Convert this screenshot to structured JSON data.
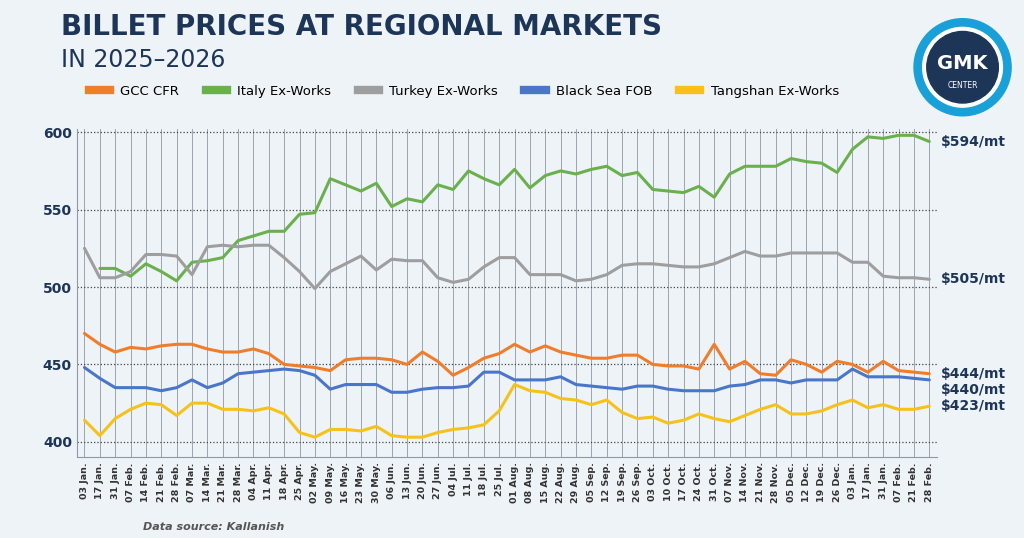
{
  "chart_data": {
    "type": "line",
    "title": "BILLET PRICES AT REGIONAL MARKETS",
    "subtitle": "IN 2025–2026",
    "source": "Data source: Kallanish",
    "logo_text": [
      "GMK",
      "CENTER"
    ],
    "categories": [
      "03 Jan.",
      "17 Jan.",
      "31 Jan.",
      "07 Feb.",
      "14 Feb.",
      "21 Feb.",
      "28 Feb.",
      "07 Mar.",
      "14 Mar.",
      "21 Mar.",
      "28 Mar.",
      "04 Apr.",
      "11 Apr.",
      "18 Apr.",
      "25 Apr.",
      "02 May.",
      "09 May.",
      "16 May.",
      "23 May.",
      "30 May.",
      "06 Jun.",
      "13 Jun.",
      "20 Jun.",
      "27 Jun.",
      "04 Jul.",
      "11 Jul.",
      "18 Jul.",
      "25 Jul.",
      "01 Aug.",
      "08 Aug.",
      "15 Aug.",
      "22 Aug.",
      "29 Aug.",
      "05 Sep.",
      "12 Sep.",
      "19 Sep.",
      "26 Sep.",
      "03 Oct.",
      "10 Oct.",
      "17 Oct.",
      "24 Oct.",
      "31 Oct.",
      "07 Nov.",
      "14 Nov.",
      "21 Nov.",
      "28 Nov.",
      "05 Dec.",
      "12 Dec.",
      "19 Dec.",
      "26 Dec.",
      "03 Jan.",
      "17 Jan.",
      "31 Jan.",
      "07 Feb.",
      "21 Feb.",
      "28 Feb."
    ],
    "series": [
      {
        "name": "GCC CFR",
        "color": "#f07d2a",
        "end_label": "$444/mt",
        "values": [
          470,
          463,
          458,
          461,
          460,
          462,
          463,
          463,
          460,
          458,
          458,
          460,
          457,
          450,
          449,
          448,
          446,
          453,
          454,
          454,
          453,
          450,
          458,
          452,
          443,
          448,
          454,
          457,
          463,
          458,
          462,
          458,
          456,
          454,
          454,
          456,
          456,
          450,
          449,
          449,
          447,
          463,
          447,
          452,
          444,
          443,
          453,
          450,
          445,
          452,
          450,
          445,
          452,
          446,
          445,
          444
        ]
      },
      {
        "name": "Italy Ex-Works",
        "color": "#6ab04c",
        "end_label": "$594/mt",
        "values": [
          null,
          512,
          512,
          507,
          515,
          510,
          504,
          516,
          517,
          519,
          530,
          533,
          536,
          536,
          547,
          548,
          570,
          566,
          562,
          567,
          552,
          557,
          555,
          566,
          563,
          575,
          570,
          566,
          576,
          564,
          572,
          575,
          573,
          576,
          578,
          572,
          574,
          563,
          562,
          561,
          565,
          558,
          573,
          578,
          578,
          578,
          583,
          581,
          580,
          574,
          589,
          597,
          596,
          598,
          598,
          594
        ]
      },
      {
        "name": "Turkey Ex-Works",
        "color": "#9e9e9e",
        "end_label": "$505/mt",
        "values": [
          525,
          506,
          506,
          510,
          521,
          521,
          520,
          508,
          526,
          527,
          526,
          527,
          527,
          519,
          510,
          499,
          510,
          515,
          520,
          511,
          518,
          517,
          517,
          506,
          503,
          505,
          513,
          519,
          519,
          508,
          508,
          508,
          504,
          505,
          508,
          514,
          515,
          515,
          514,
          513,
          513,
          515,
          519,
          523,
          520,
          520,
          522,
          522,
          522,
          522,
          516,
          516,
          507,
          506,
          506,
          505
        ]
      },
      {
        "name": "Black Sea FOB",
        "color": "#4a76c9",
        "end_label": "$440/mt",
        "values": [
          448,
          441,
          435,
          435,
          435,
          433,
          435,
          440,
          435,
          438,
          444,
          445,
          446,
          447,
          446,
          443,
          434,
          437,
          437,
          437,
          432,
          432,
          434,
          435,
          435,
          436,
          445,
          445,
          440,
          440,
          440,
          442,
          437,
          436,
          435,
          434,
          436,
          436,
          434,
          433,
          433,
          433,
          436,
          437,
          440,
          440,
          438,
          440,
          440,
          440,
          447,
          442,
          442,
          442,
          441,
          440
        ]
      },
      {
        "name": "Tangshan Ex-Works",
        "color": "#f6c21a",
        "end_label": "$423/mt",
        "values": [
          414,
          404,
          415,
          421,
          425,
          424,
          417,
          425,
          425,
          421,
          421,
          420,
          422,
          418,
          406,
          403,
          408,
          408,
          407,
          410,
          404,
          403,
          403,
          406,
          408,
          409,
          411,
          420,
          437,
          433,
          432,
          428,
          427,
          424,
          427,
          419,
          415,
          416,
          412,
          414,
          418,
          415,
          413,
          417,
          421,
          424,
          418,
          418,
          420,
          424,
          427,
          422,
          424,
          421,
          421,
          423
        ]
      }
    ],
    "ylim": [
      390,
      602
    ],
    "yticks": [
      400,
      450,
      500,
      550,
      600
    ],
    "grid": true,
    "legend": "upper left"
  }
}
